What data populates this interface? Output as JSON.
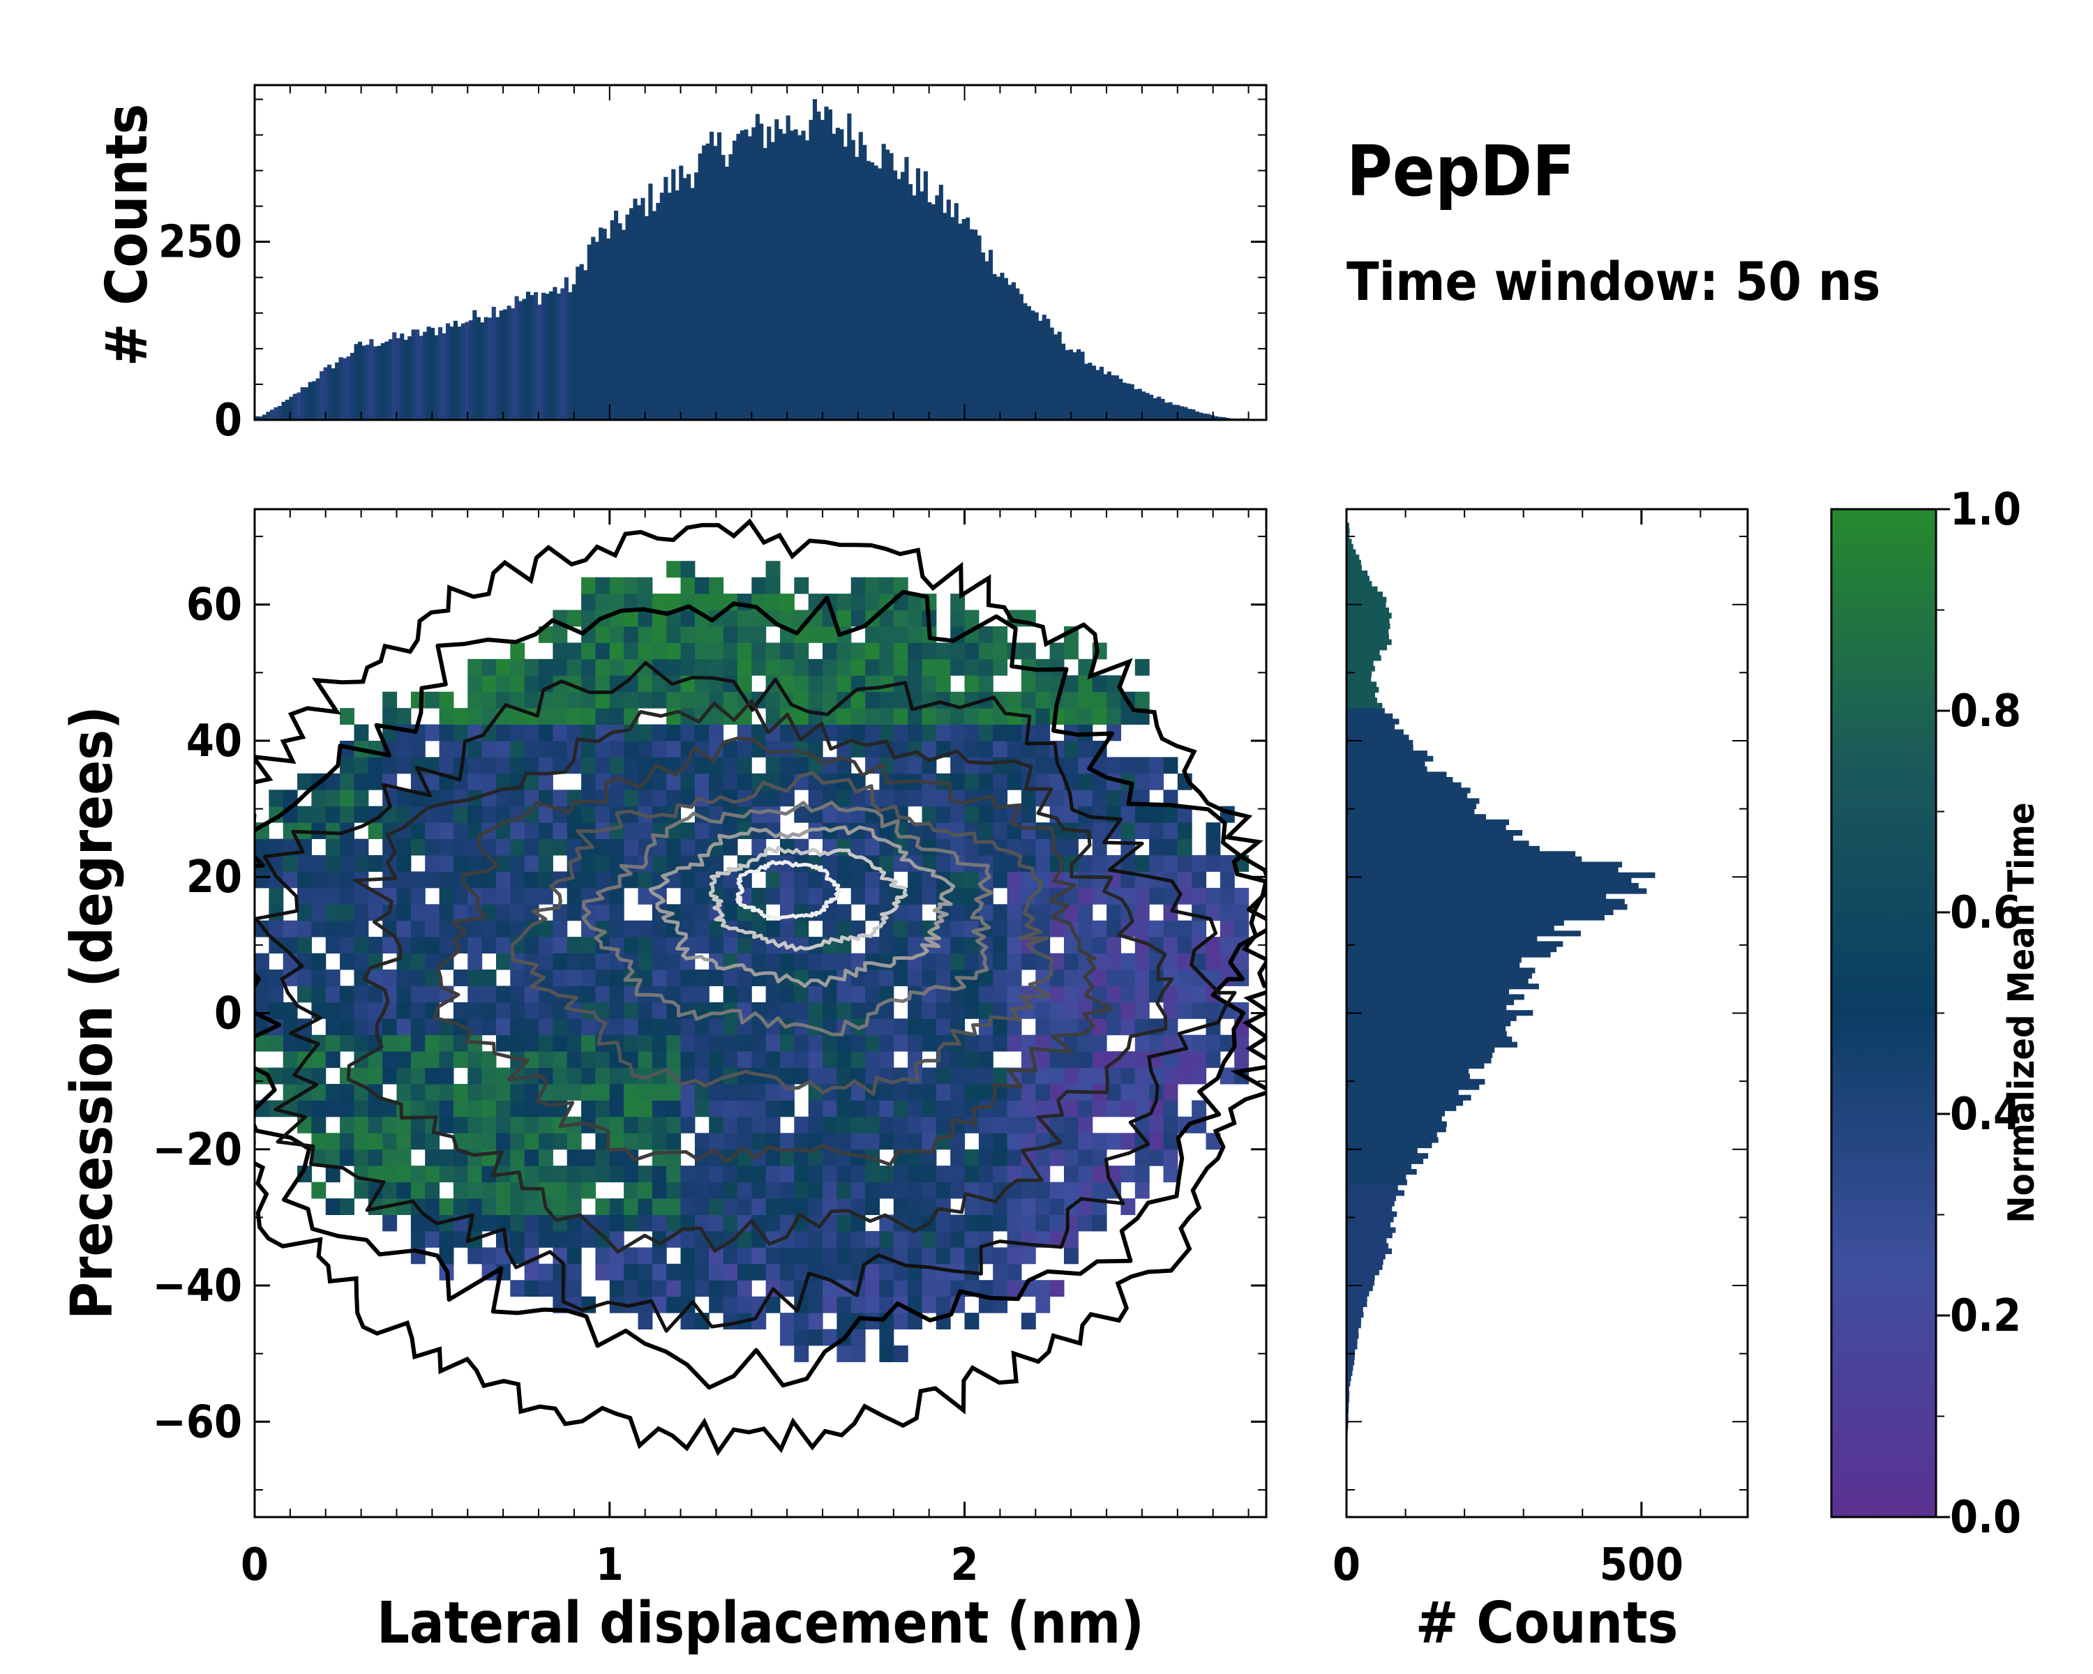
{
  "chart_data": {
    "type": "heatmap",
    "title": "PepDF",
    "subtitle": "Time window: 50 ns",
    "main": {
      "xlabel": "Lateral displacement (nm)",
      "ylabel": "Precession (degrees)",
      "xlim": [
        0,
        2.85
      ],
      "ylim": [
        -74,
        74
      ],
      "xticks": [
        0,
        1,
        2
      ],
      "xtick_labels": [
        "0",
        "1",
        "2"
      ],
      "yticks": [
        -60,
        -40,
        -20,
        0,
        20,
        40,
        60
      ],
      "ytick_labels": [
        "−60",
        "−40",
        "−20",
        "0",
        "20",
        "40",
        "60"
      ],
      "density_peak": {
        "x": 1.55,
        "y": 17
      },
      "note": "2D histogram colored by normalized mean time with density contours (black low, grey/white high)"
    },
    "top_histogram": {
      "ylabel": "# Counts",
      "yticks": [
        0,
        250
      ],
      "ytick_labels": [
        "0",
        "250"
      ],
      "ylim": [
        0,
        470
      ],
      "x": [
        0.02,
        0.1,
        0.2,
        0.3,
        0.4,
        0.5,
        0.6,
        0.7,
        0.8,
        0.9,
        0.95,
        1.0,
        1.1,
        1.2,
        1.3,
        1.4,
        1.5,
        1.6,
        1.7,
        1.8,
        1.9,
        2.0,
        2.1,
        2.2,
        2.3,
        2.4,
        2.5,
        2.6,
        2.7,
        2.75
      ],
      "counts": [
        5,
        30,
        70,
        105,
        115,
        125,
        140,
        160,
        175,
        190,
        250,
        265,
        305,
        340,
        380,
        400,
        415,
        420,
        400,
        360,
        320,
        280,
        210,
        150,
        100,
        65,
        40,
        20,
        6,
        2
      ]
    },
    "right_histogram": {
      "xlabel": "# Counts",
      "xticks": [
        0,
        500
      ],
      "xtick_labels": [
        "0",
        "500"
      ],
      "xlim": [
        0,
        680
      ],
      "y": [
        70,
        65,
        60,
        55,
        50,
        45,
        40,
        35,
        30,
        25,
        22,
        20,
        18,
        15,
        10,
        5,
        0,
        -5,
        -10,
        -15,
        -20,
        -25,
        -30,
        -35,
        -40,
        -45,
        -50,
        -55,
        -60,
        -65
      ],
      "counts": [
        5,
        30,
        70,
        75,
        40,
        60,
        110,
        160,
        230,
        320,
        430,
        510,
        480,
        440,
        340,
        310,
        290,
        265,
        215,
        175,
        135,
        95,
        80,
        70,
        45,
        25,
        15,
        5,
        3,
        0
      ]
    },
    "colorbar": {
      "label": "Normalized Mean Time",
      "range": [
        0,
        1
      ],
      "ticks": [
        0,
        0.2,
        0.4,
        0.6,
        0.8,
        1
      ],
      "tick_labels": [
        "0.0",
        "0.2",
        "0.4",
        "0.6",
        "0.8",
        "1.0"
      ],
      "colors": [
        "#5b3192",
        "#3e4f9e",
        "#1f3f78",
        "#0b3d5e",
        "#1f6e4f",
        "#268a2e"
      ]
    }
  }
}
